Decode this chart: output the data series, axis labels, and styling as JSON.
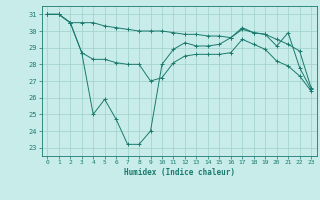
{
  "xlabel": "Humidex (Indice chaleur)",
  "background_color": "#c8ece9",
  "grid_color": "#a0d0cc",
  "line_color": "#1a7a6e",
  "xlim": [
    -0.5,
    23.5
  ],
  "ylim": [
    22.5,
    31.5
  ],
  "yticks": [
    23,
    24,
    25,
    26,
    27,
    28,
    29,
    30,
    31
  ],
  "xticks": [
    0,
    1,
    2,
    3,
    4,
    5,
    6,
    7,
    8,
    9,
    10,
    11,
    12,
    13,
    14,
    15,
    16,
    17,
    18,
    19,
    20,
    21,
    22,
    23
  ],
  "series1_x": [
    0,
    1,
    2,
    3,
    4,
    5,
    6,
    7,
    8,
    9,
    10,
    11,
    12,
    13,
    14,
    15,
    16,
    17,
    18,
    19,
    20,
    21,
    22,
    23
  ],
  "series1_y": [
    31.0,
    31.0,
    30.5,
    30.5,
    30.5,
    30.3,
    30.2,
    30.1,
    30.0,
    30.0,
    30.0,
    29.9,
    29.8,
    29.8,
    29.7,
    29.7,
    29.6,
    30.1,
    29.9,
    29.8,
    29.5,
    29.2,
    28.8,
    26.6
  ],
  "series2_x": [
    0,
    1,
    2,
    3,
    4,
    5,
    6,
    7,
    8,
    9,
    10,
    11,
    12,
    13,
    14,
    15,
    16,
    17,
    18,
    19,
    20,
    21,
    22,
    23
  ],
  "series2_y": [
    31.0,
    31.0,
    30.5,
    28.7,
    25.0,
    25.9,
    24.7,
    23.2,
    23.2,
    24.0,
    28.0,
    28.9,
    29.3,
    29.1,
    29.1,
    29.2,
    29.6,
    30.2,
    29.9,
    29.8,
    29.1,
    29.9,
    27.8,
    26.5
  ],
  "series3_x": [
    0,
    1,
    2,
    3,
    4,
    5,
    6,
    7,
    8,
    9,
    10,
    11,
    12,
    13,
    14,
    15,
    16,
    17,
    18,
    19,
    20,
    21,
    22,
    23
  ],
  "series3_y": [
    31.0,
    31.0,
    30.5,
    28.7,
    28.3,
    28.3,
    28.1,
    28.0,
    28.0,
    27.0,
    27.2,
    28.1,
    28.5,
    28.6,
    28.6,
    28.6,
    28.7,
    29.5,
    29.2,
    28.9,
    28.2,
    27.9,
    27.3,
    26.4
  ]
}
